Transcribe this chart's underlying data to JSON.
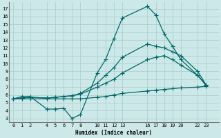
{
  "xlabel": "Humidex (Indice chaleur)",
  "bg_color": "#cce8e8",
  "line_color": "#006868",
  "grid_color": "#aacccc",
  "x_ticks": [
    0,
    1,
    2,
    4,
    5,
    6,
    7,
    8,
    10,
    11,
    12,
    13,
    16,
    17,
    18,
    19,
    20,
    22,
    23
  ],
  "y_ticks": [
    3,
    4,
    5,
    6,
    7,
    8,
    9,
    10,
    11,
    12,
    13,
    14,
    15,
    16,
    17
  ],
  "xlim": [
    -0.5,
    24.5
  ],
  "ylim": [
    2.5,
    17.8
  ],
  "line_bottom_x": [
    0,
    1,
    2,
    4,
    5,
    6,
    7,
    8,
    10,
    11,
    12,
    13,
    16,
    17,
    18,
    19,
    20,
    22,
    23
  ],
  "line_bottom_y": [
    5.5,
    5.5,
    5.5,
    5.5,
    5.5,
    5.5,
    5.5,
    5.5,
    5.7,
    5.8,
    6.0,
    6.2,
    6.5,
    6.6,
    6.7,
    6.8,
    6.9,
    7.0,
    7.1
  ],
  "line_peak_x": [
    0,
    1,
    2,
    4,
    5,
    6,
    7,
    8,
    10,
    11,
    12,
    13,
    16,
    17,
    18,
    19,
    20,
    22,
    23
  ],
  "line_peak_y": [
    5.5,
    5.8,
    5.8,
    4.2,
    4.2,
    4.3,
    3.0,
    3.5,
    8.8,
    10.5,
    13.2,
    15.8,
    17.3,
    16.2,
    13.8,
    12.2,
    10.5,
    8.5,
    7.2
  ],
  "line_mid_lo_x": [
    0,
    1,
    2,
    4,
    5,
    6,
    7,
    8,
    10,
    11,
    12,
    13,
    16,
    17,
    18,
    19,
    20,
    22,
    23
  ],
  "line_mid_lo_y": [
    5.5,
    5.6,
    5.7,
    5.6,
    5.7,
    5.8,
    5.9,
    6.1,
    7.0,
    7.5,
    8.0,
    8.8,
    10.5,
    10.8,
    11.0,
    10.5,
    9.8,
    8.5,
    7.3
  ],
  "line_mid_hi_x": [
    0,
    1,
    2,
    4,
    5,
    6,
    7,
    8,
    10,
    11,
    12,
    13,
    16,
    17,
    18,
    19,
    20,
    22,
    23
  ],
  "line_mid_hi_y": [
    5.5,
    5.6,
    5.7,
    5.6,
    5.7,
    5.8,
    5.9,
    6.2,
    7.5,
    8.5,
    9.5,
    10.8,
    12.5,
    12.2,
    12.0,
    11.5,
    11.0,
    9.0,
    7.3
  ]
}
